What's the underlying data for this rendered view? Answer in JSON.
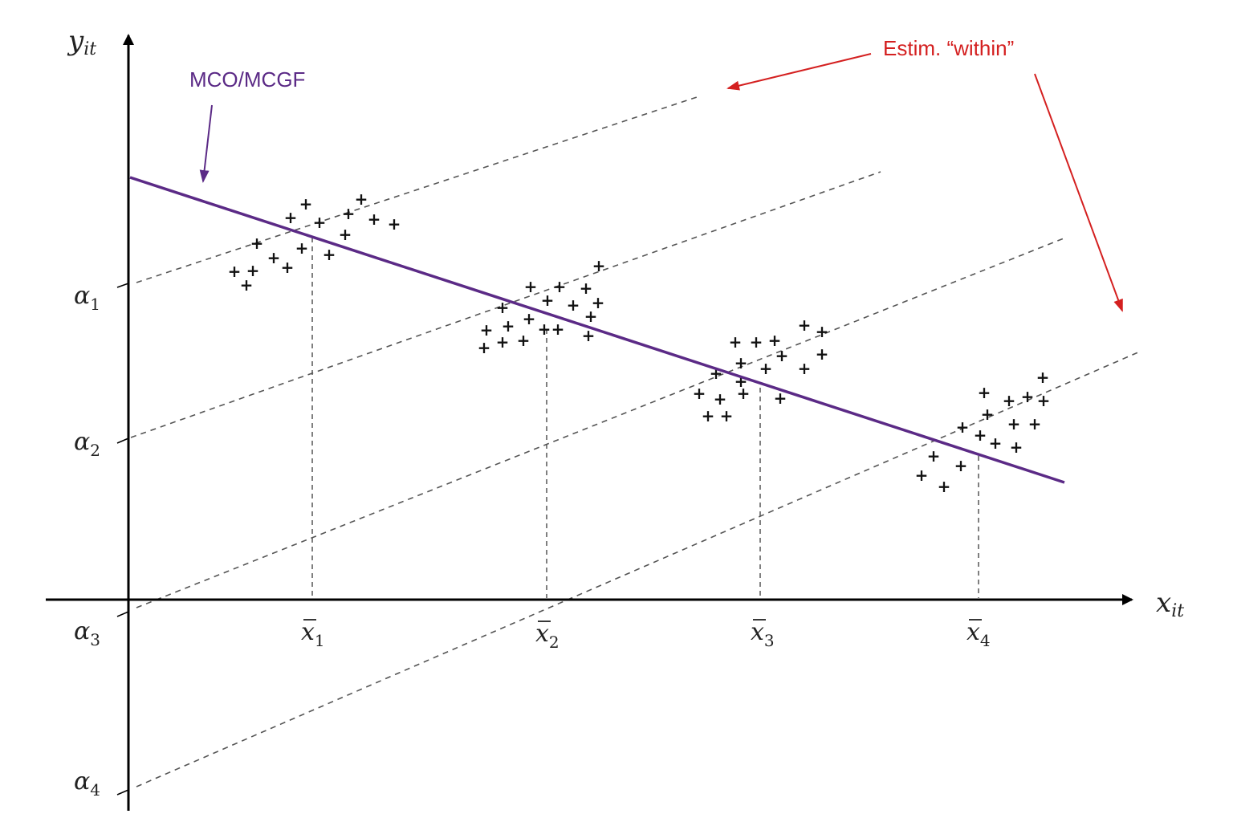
{
  "axes": {
    "y_var": "y",
    "y_sub": "it",
    "x_var": "x",
    "x_sub": "it"
  },
  "intercepts": [
    {
      "symbol": "α",
      "sub": "1"
    },
    {
      "symbol": "α",
      "sub": "2"
    },
    {
      "symbol": "α",
      "sub": "3"
    },
    {
      "symbol": "α",
      "sub": "4"
    }
  ],
  "group_means": [
    {
      "symbol": "x",
      "sub": "1"
    },
    {
      "symbol": "x",
      "sub": "2"
    },
    {
      "symbol": "x",
      "sub": "3"
    },
    {
      "symbol": "x",
      "sub": "4"
    }
  ],
  "annotations": {
    "ols_label": "MCO/MCGF",
    "within_label": "Estim. “within”"
  },
  "marker": "+",
  "colors": {
    "ols_line": "#5b2a86",
    "within_annotation": "#d42020",
    "axes": "#000000",
    "dashed": "#555555"
  }
}
